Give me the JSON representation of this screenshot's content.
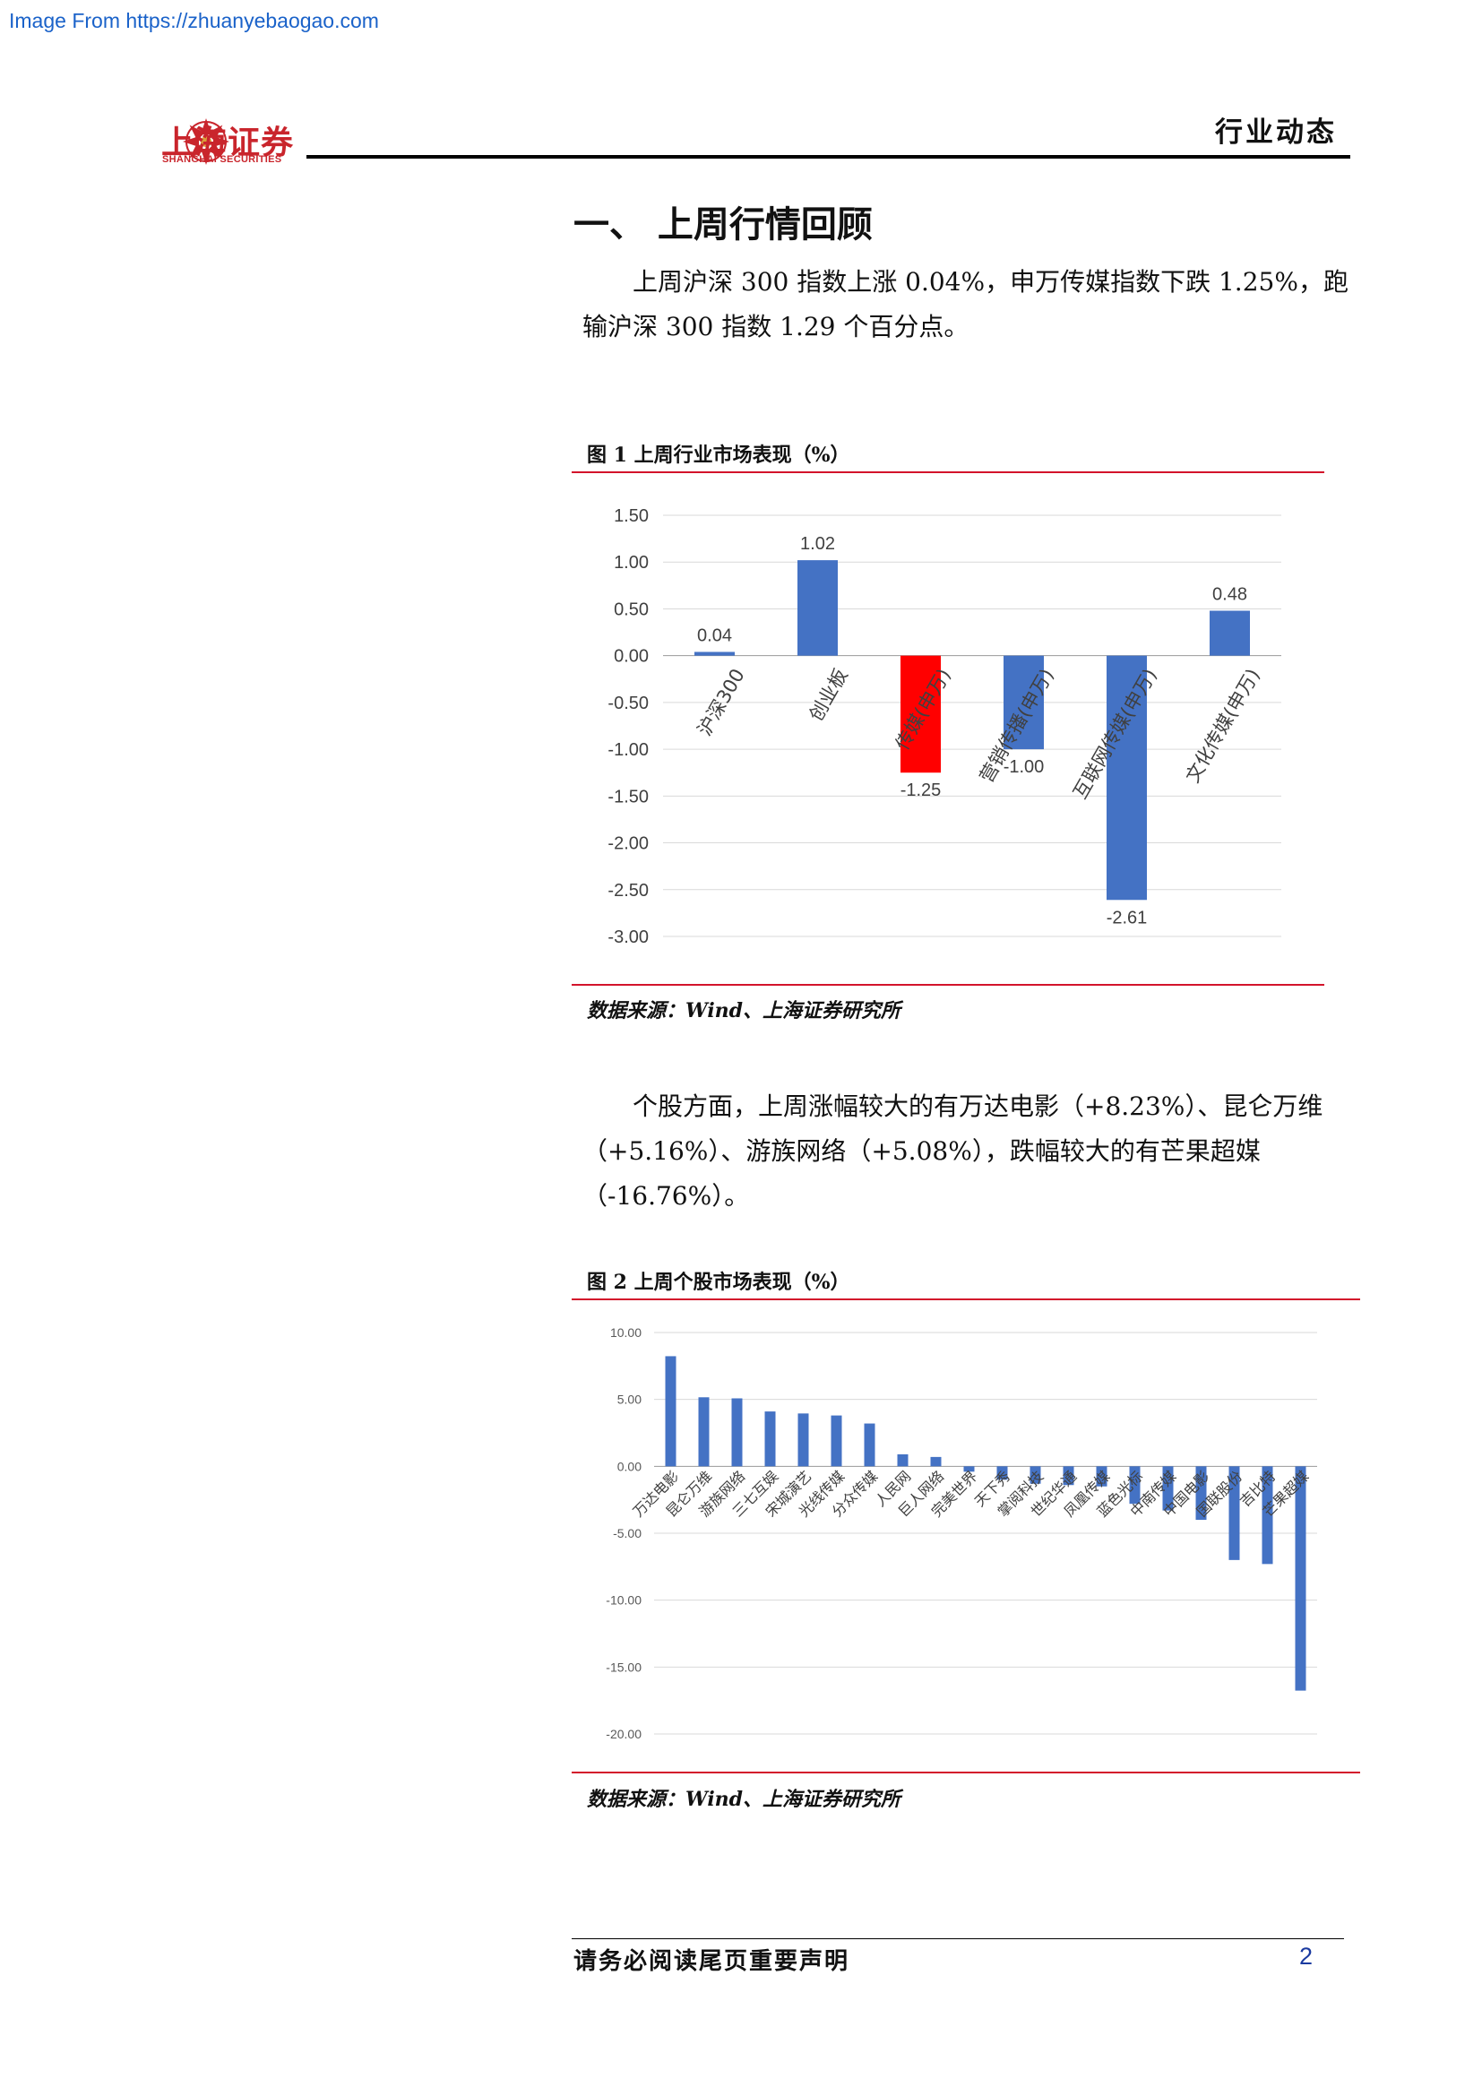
{
  "watermark": "Image From https://zhuanyebaogao.com",
  "header": {
    "logo_cn": "上海证券",
    "logo_en": "SHANGHAI SECURITIES",
    "doc_type": "行业动态",
    "brand_color": "#c9252c"
  },
  "section": {
    "title": "一、 上周行情回顾",
    "para1": "上周沪深 300 指数上涨 0.04%，申万传媒指数下跌 1.25%，跑输沪深 300 指数 1.29 个百分点。",
    "para2": "个股方面，上周涨幅较大的有万达电影（+8.23%）、昆仑万维（+5.16%）、游族网络（+5.08%），跌幅较大的有芒果超媒（-16.76%）。"
  },
  "figure1": {
    "title": "图 1 上周行业市场表现（%）",
    "source": "数据来源：Wind、上海证券研究所"
  },
  "figure2": {
    "title": "图 2 上周个股市场表现（%）",
    "source": "数据来源：Wind、上海证券研究所"
  },
  "chart_data": [
    {
      "type": "bar",
      "categories": [
        "沪深300",
        "创业板",
        "传媒(申万)",
        "营销传播(申万)",
        "互联网传媒(申万)",
        "文化传媒(申万)"
      ],
      "values": [
        0.04,
        1.02,
        -1.25,
        -1.0,
        -2.61,
        0.48
      ],
      "data_labels": [
        "0.04",
        "1.02",
        "-1.25",
        "-1.00",
        "-2.61",
        "0.48"
      ],
      "colors": [
        "#4472c4",
        "#4472c4",
        "#ff0000",
        "#4472c4",
        "#4472c4",
        "#4472c4"
      ],
      "ylim": [
        -3.0,
        1.5
      ],
      "yticks": [
        "1.50",
        "1.00",
        "0.50",
        "0.00",
        "-0.50",
        "-1.00",
        "-1.50",
        "-2.00",
        "-2.50",
        "-3.00"
      ],
      "grid": true
    },
    {
      "type": "bar",
      "categories": [
        "万达电影",
        "昆仑万维",
        "游族网络",
        "三七互娱",
        "宋城演艺",
        "光线传媒",
        "分众传媒",
        "人民网",
        "巨人网络",
        "完美世界",
        "天下秀",
        "掌阅科技",
        "世纪华通",
        "凤凰传媒",
        "蓝色光标",
        "中南传媒",
        "中国电影",
        "国联股份",
        "吉比特",
        "芒果超媒"
      ],
      "values": [
        8.23,
        5.16,
        5.08,
        4.1,
        3.95,
        3.8,
        3.2,
        0.9,
        0.7,
        -0.4,
        -1.0,
        -1.3,
        -1.4,
        -1.5,
        -2.8,
        -3.3,
        -4.0,
        -7.0,
        -7.3,
        -16.76
      ],
      "color": "#4472c4",
      "ylim": [
        -20,
        10
      ],
      "yticks": [
        "10.00",
        "5.00",
        "0.00",
        "-5.00",
        "-10.00",
        "-15.00",
        "-20.00"
      ],
      "grid": true
    }
  ],
  "footer": {
    "disclaimer": "请务必阅读尾页重要声明",
    "page": "2"
  }
}
